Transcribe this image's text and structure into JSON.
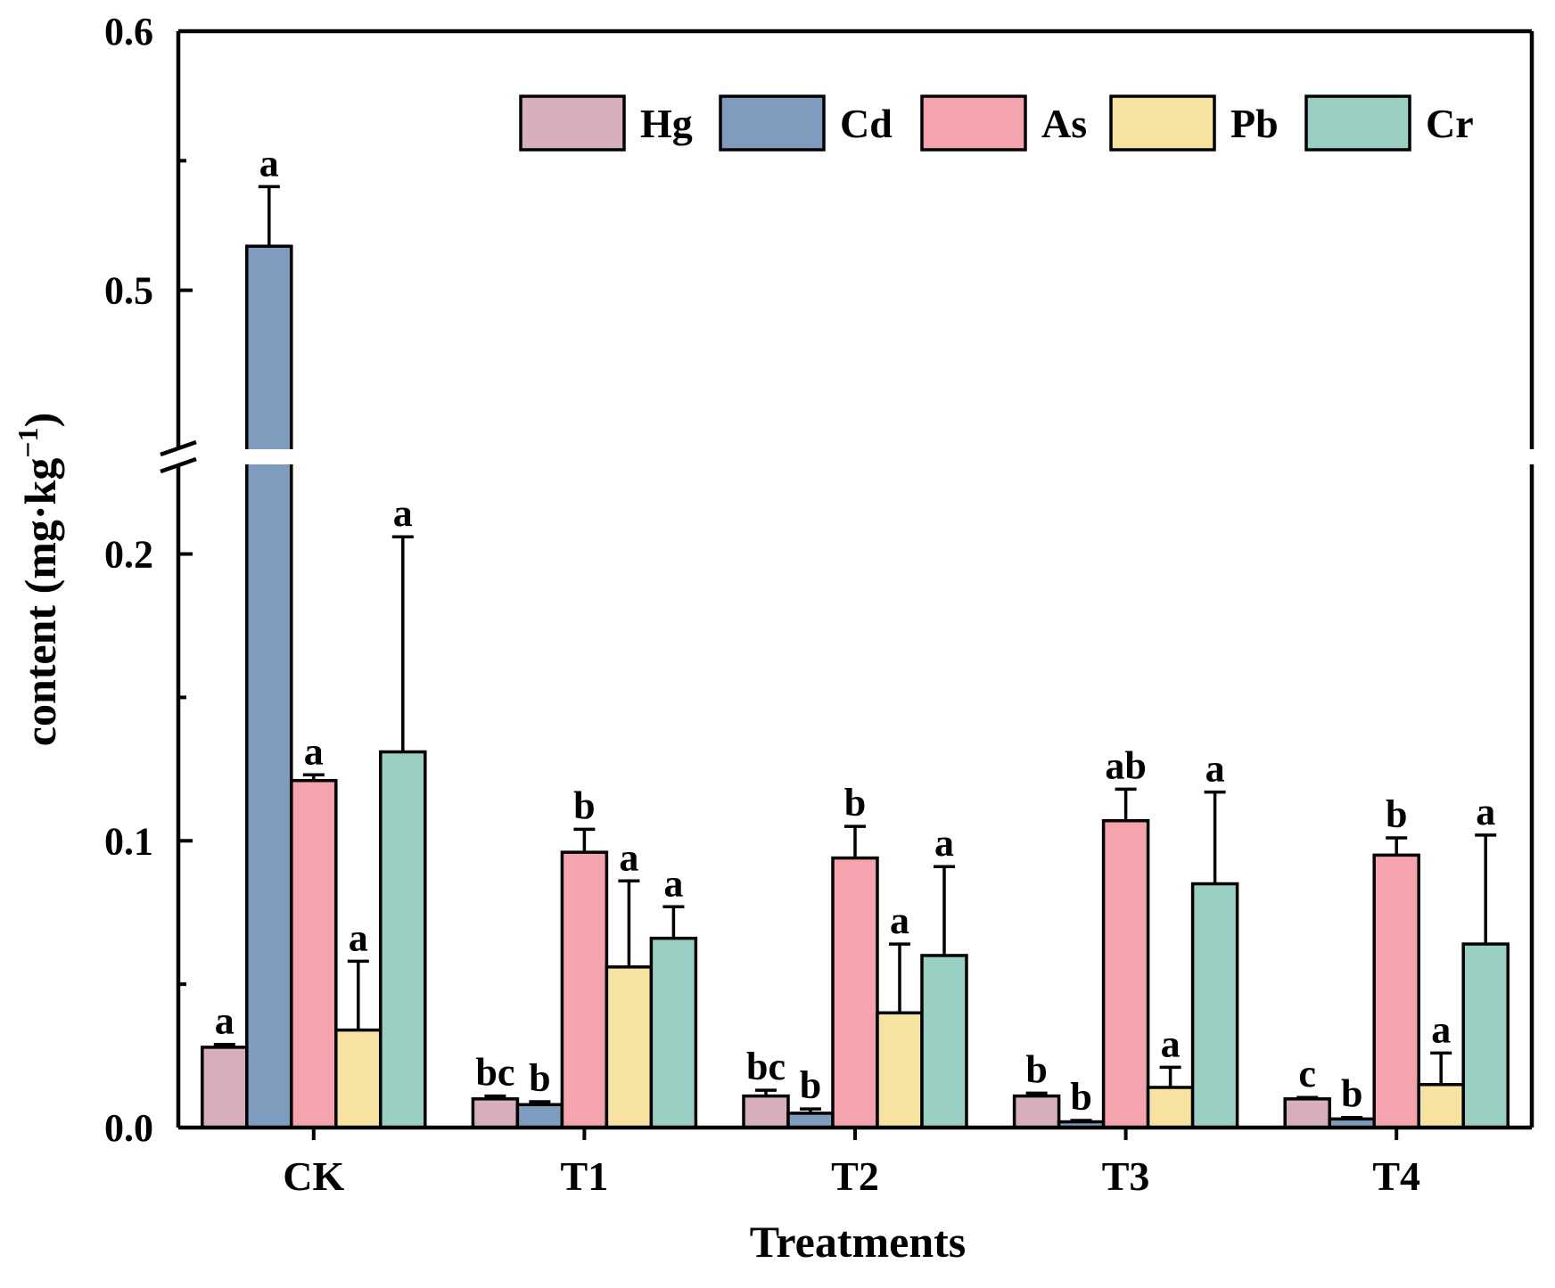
{
  "chart_data": {
    "type": "bar",
    "xlabel": "Treatments",
    "ylabel_main": "content (mg·kg",
    "ylabel_sup": "−1",
    "ylabel_close": ")",
    "categories": [
      "CK",
      "T1",
      "T2",
      "T3",
      "T4"
    ],
    "y_ticks": [
      "0.0",
      "0.1",
      "0.2",
      "0.5",
      "0.6"
    ],
    "y_tick_values": [
      0.0,
      0.1,
      0.2,
      0.5,
      0.6
    ],
    "y_axis_break": [
      0.23,
      0.44
    ],
    "ylim": [
      0,
      0.6
    ],
    "legend_position": "top-right",
    "series": [
      {
        "name": "Hg",
        "color": "#D6AFBA",
        "values": [
          0.028,
          0.01,
          0.011,
          0.011,
          0.01
        ],
        "errors": [
          0.001,
          0.001,
          0.002,
          0.001,
          0.0005
        ],
        "sig": [
          "a",
          "bc",
          "bc",
          "b",
          "c"
        ]
      },
      {
        "name": "Cd",
        "color": "#7E9CBD",
        "values": [
          0.517,
          0.008,
          0.005,
          0.002,
          0.003
        ],
        "errors": [
          0.023,
          0.001,
          0.0015,
          0.0005,
          0.0005
        ],
        "sig": [
          "a",
          "b",
          "b",
          "b",
          "b"
        ]
      },
      {
        "name": "As",
        "color": "#F5A3AC",
        "values": [
          0.121,
          0.096,
          0.094,
          0.107,
          0.095
        ],
        "errors": [
          0.002,
          0.008,
          0.011,
          0.011,
          0.006
        ],
        "sig": [
          "a",
          "b",
          "b",
          "ab",
          "b"
        ]
      },
      {
        "name": "Pb",
        "color": "#F7E3A1",
        "values": [
          0.034,
          0.056,
          0.04,
          0.014,
          0.015
        ],
        "errors": [
          0.024,
          0.03,
          0.024,
          0.007,
          0.011
        ],
        "sig": [
          "a",
          "a",
          "a",
          "a",
          "a"
        ]
      },
      {
        "name": "Cr",
        "color": "#99D0C3",
        "values": [
          0.131,
          0.066,
          0.06,
          0.085,
          0.064
        ],
        "errors": [
          0.075,
          0.011,
          0.031,
          0.032,
          0.038
        ],
        "sig": [
          "a",
          "a",
          "a",
          "a",
          "a"
        ]
      }
    ]
  }
}
